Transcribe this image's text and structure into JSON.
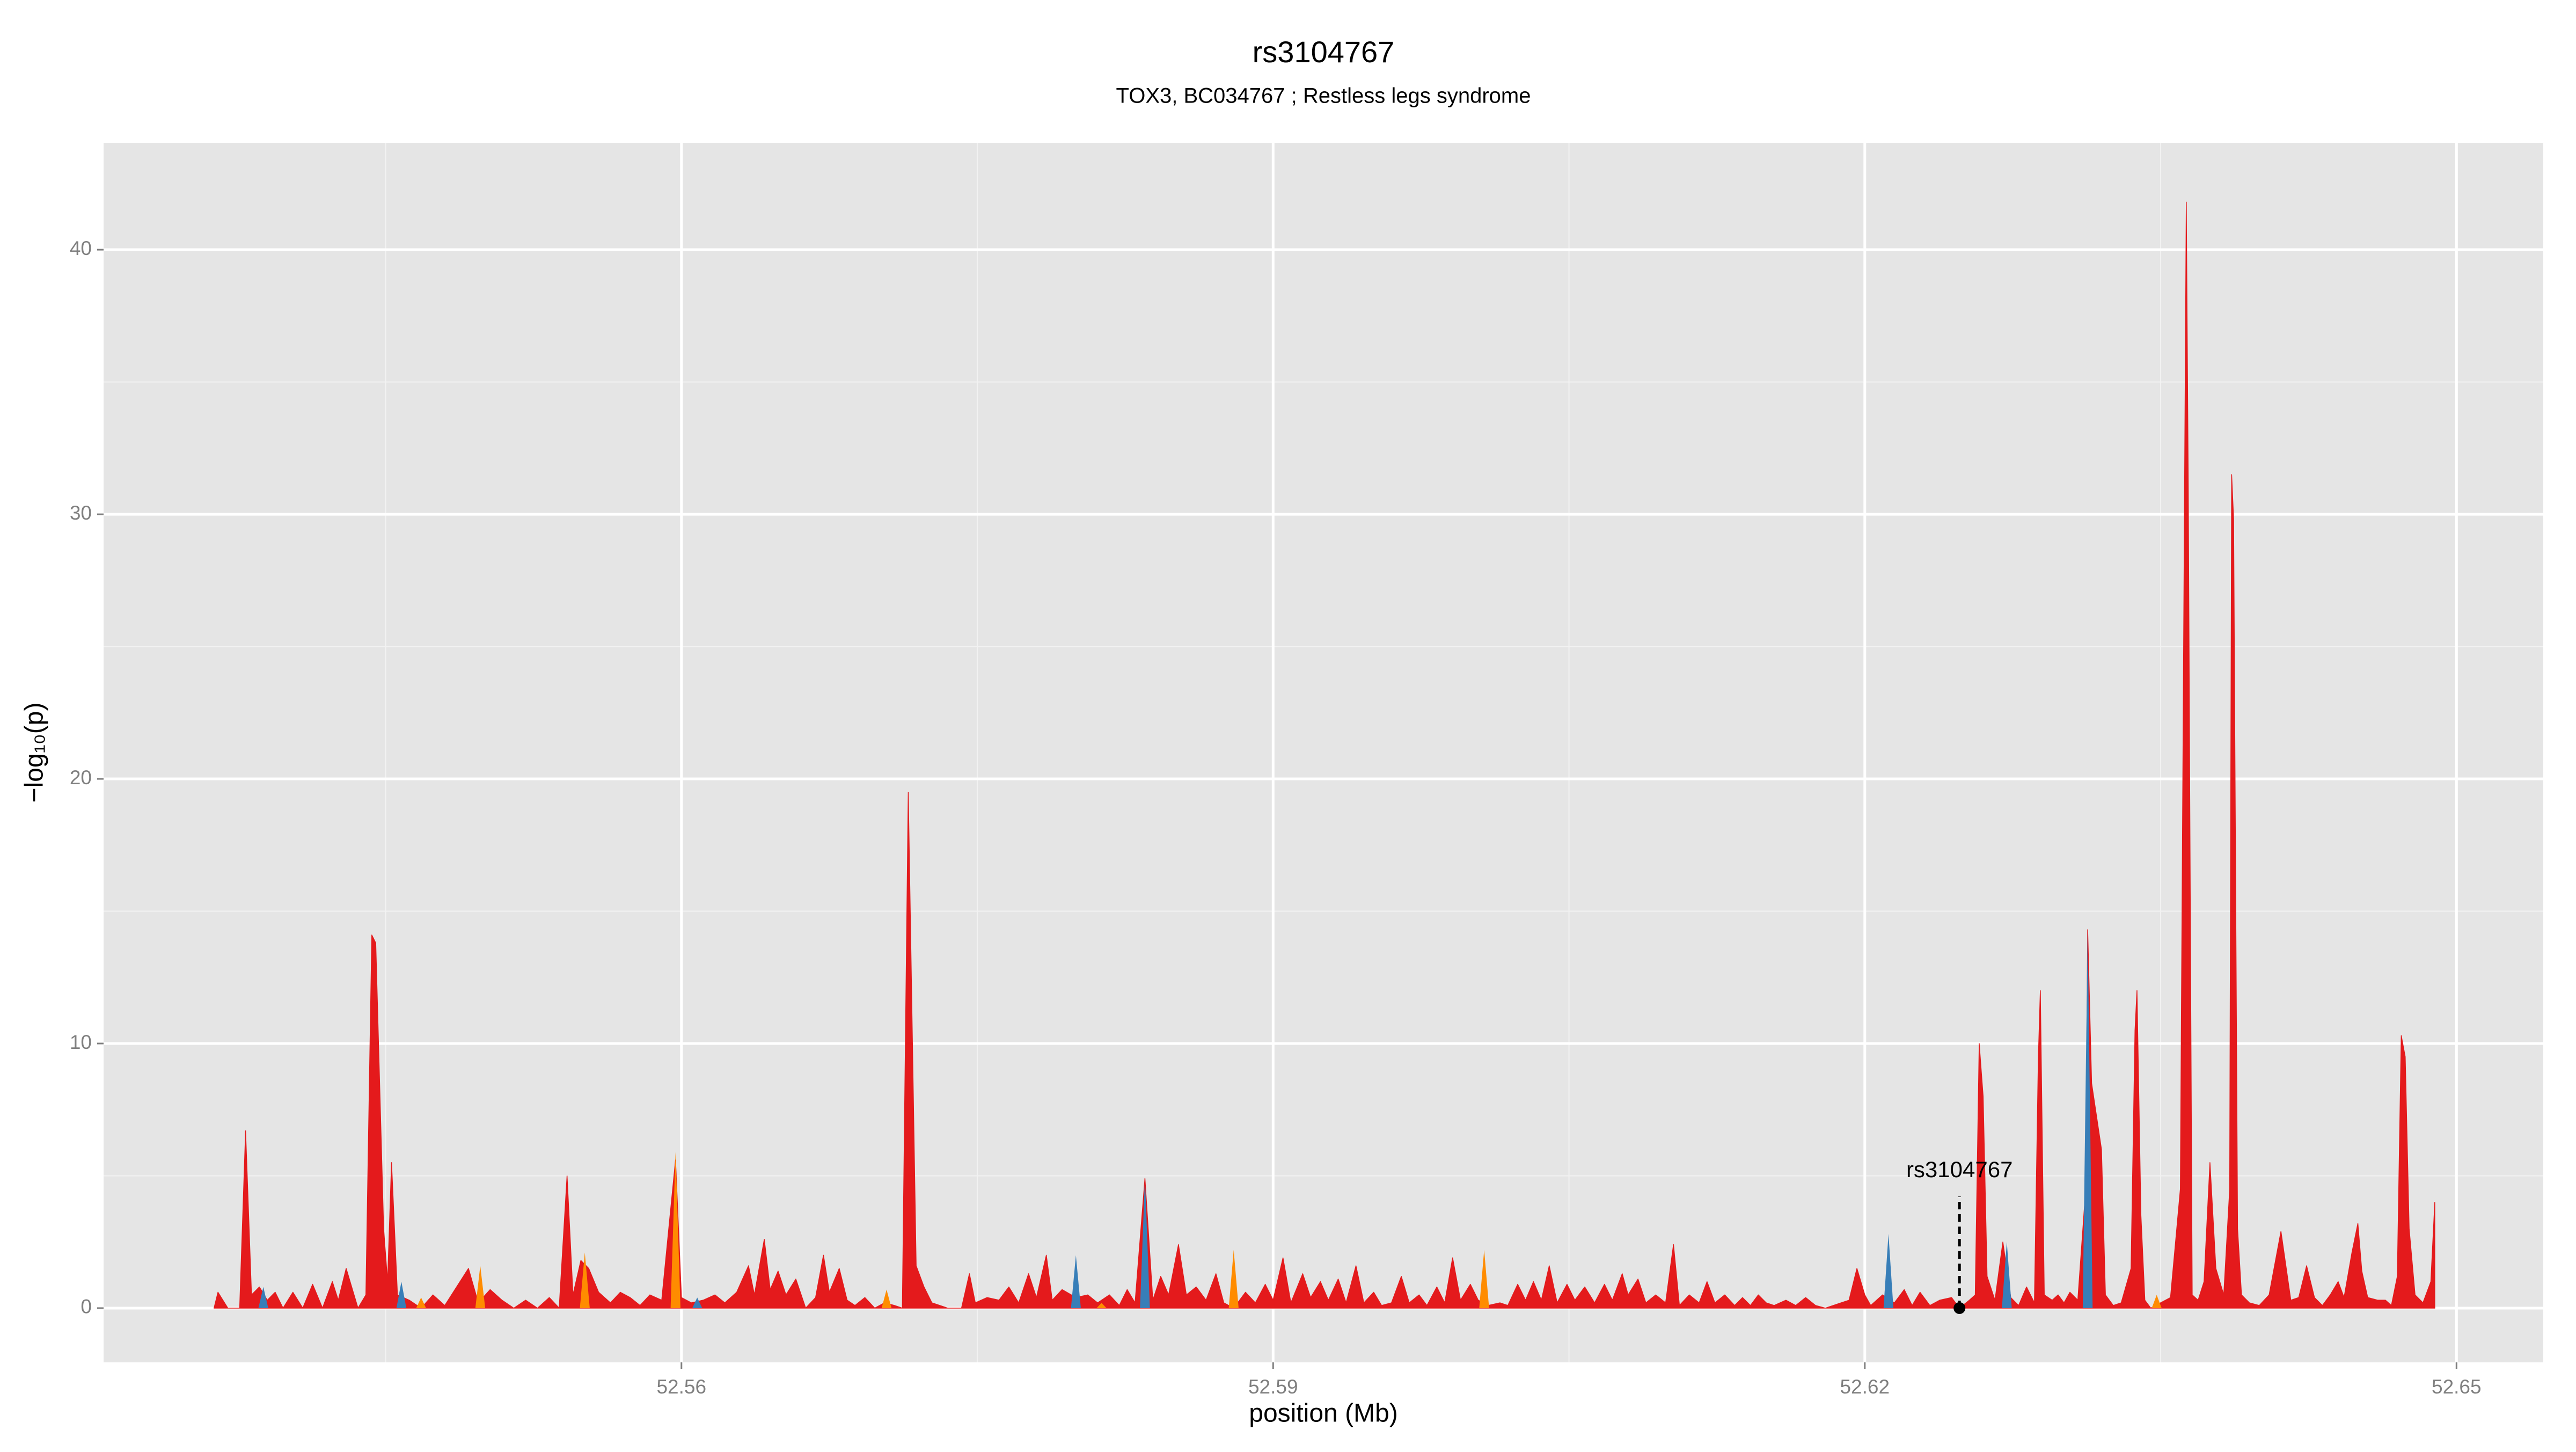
{
  "chart_data": {
    "type": "area",
    "title": "rs3104767",
    "subtitle": "TOX3, BC034767 ; Restless legs syndrome",
    "x_label": "position (Mb)",
    "y_label": "−log₁₀(p)",
    "xlim": [
      52.5307,
      52.6544
    ],
    "ylim": [
      -2.05,
      44.04
    ],
    "xticks": [
      52.56,
      52.59,
      52.62,
      52.65
    ],
    "yticks": [
      0,
      10,
      20,
      30,
      40
    ],
    "x_minor_ticks": [
      52.545,
      52.575,
      52.605,
      52.635
    ],
    "y_minor_ticks": [
      5,
      15,
      25,
      35
    ],
    "grid": true,
    "series": [
      {
        "color": "#e41a1c",
        "style": "area",
        "x": [
          52.5363,
          52.5365,
          52.537,
          52.5376,
          52.5379,
          52.5382,
          52.5386,
          52.539,
          52.5394,
          52.5398,
          52.5403,
          52.5408,
          52.5413,
          52.5418,
          52.5423,
          52.5426,
          52.543,
          52.5434,
          52.5436,
          52.544,
          52.5443,
          52.5445,
          52.5449,
          52.5451,
          52.5453,
          52.5456,
          52.5462,
          52.5468,
          52.5474,
          52.548,
          52.5486,
          52.5492,
          52.5497,
          52.5503,
          52.5509,
          52.5515,
          52.5521,
          52.5527,
          52.5533,
          52.5538,
          52.5542,
          52.5545,
          52.5549,
          52.5553,
          52.5558,
          52.5564,
          52.5569,
          52.5574,
          52.5579,
          52.5584,
          52.559,
          52.5597,
          52.56,
          52.5605,
          52.5611,
          52.5617,
          52.5622,
          52.5628,
          52.5634,
          52.5637,
          52.5642,
          52.5645,
          52.5649,
          52.5653,
          52.5658,
          52.5663,
          52.5668,
          52.5672,
          52.5675,
          52.568,
          52.5684,
          52.5688,
          52.5693,
          52.5698,
          52.5703,
          52.5708,
          52.5712,
          52.5715,
          52.5719,
          52.5723,
          52.5727,
          52.5731,
          52.5735,
          52.5742,
          52.5746,
          52.5749,
          52.5755,
          52.5761,
          52.5766,
          52.5771,
          52.5776,
          52.578,
          52.5785,
          52.5788,
          52.5793,
          52.58,
          52.5806,
          52.5811,
          52.5817,
          52.5822,
          52.5826,
          52.583,
          52.5835,
          52.5839,
          52.5843,
          52.5847,
          52.5852,
          52.5856,
          52.5861,
          52.5866,
          52.5871,
          52.5875,
          52.588,
          52.5886,
          52.5891,
          52.5896,
          52.59,
          52.5905,
          52.5909,
          52.5915,
          52.5919,
          52.5924,
          52.5928,
          52.5933,
          52.5937,
          52.5942,
          52.5946,
          52.5951,
          52.5955,
          52.596,
          52.5965,
          52.5969,
          52.5974,
          52.5978,
          52.5983,
          52.5987,
          52.5991,
          52.5995,
          52.6,
          52.6004,
          52.6009,
          52.6015,
          52.6019,
          52.6024,
          52.6028,
          52.6032,
          52.6036,
          52.604,
          52.6044,
          52.6049,
          52.6053,
          52.6058,
          52.6063,
          52.6068,
          52.6072,
          52.6077,
          52.608,
          52.6085,
          52.6089,
          52.6094,
          52.6099,
          52.6103,
          52.6106,
          52.6111,
          52.6116,
          52.612,
          52.6124,
          52.6129,
          52.6134,
          52.6138,
          52.6142,
          52.6146,
          52.615,
          52.6154,
          52.616,
          52.6165,
          52.617,
          52.6175,
          52.618,
          52.6188,
          52.6192,
          52.6196,
          52.62,
          52.6203,
          52.6209,
          52.6215,
          52.622,
          52.6224,
          52.6228,
          52.6233,
          52.6238,
          52.6244,
          52.6248,
          52.6253,
          52.6256,
          52.6258,
          52.626,
          52.6262,
          52.6266,
          52.627,
          52.6274,
          52.6278,
          52.6282,
          52.6286,
          52.6288,
          52.6289,
          52.6291,
          52.6295,
          52.6298,
          52.6301,
          52.6304,
          52.6308,
          52.6312,
          52.6313,
          52.6315,
          52.6318,
          52.632,
          52.6322,
          52.6326,
          52.633,
          52.6335,
          52.6337,
          52.6338,
          52.634,
          52.6342,
          52.6345,
          52.635,
          52.6355,
          52.636,
          52.6363,
          52.6364,
          52.6366,
          52.6369,
          52.6372,
          52.6375,
          52.6378,
          52.6382,
          52.6385,
          52.6386,
          52.6387,
          52.6389,
          52.6391,
          52.6395,
          52.64,
          52.6405,
          52.6411,
          52.6416,
          52.642,
          52.6424,
          52.6428,
          52.6432,
          52.6436,
          52.644,
          52.6443,
          52.6447,
          52.645,
          52.6452,
          52.6455,
          52.646,
          52.6464,
          52.6467,
          52.647,
          52.6472,
          52.6474,
          52.6476,
          52.6479,
          52.6483,
          52.6487,
          52.6489
        ],
        "values": [
          0,
          0.6,
          0,
          0,
          6.7,
          0.5,
          0.8,
          0.3,
          0.6,
          0,
          0.6,
          0,
          0.9,
          0,
          1.0,
          0.3,
          1.5,
          0.5,
          0,
          0.5,
          14.1,
          13.8,
          3,
          1,
          5.5,
          0.5,
          0.3,
          0,
          0.5,
          0.1,
          0.8,
          1.5,
          0.2,
          0.7,
          0.3,
          0,
          0.3,
          0,
          0.4,
          0,
          5.0,
          0.5,
          1.8,
          1.5,
          0.6,
          0.2,
          0.6,
          0.4,
          0.1,
          0.5,
          0.3,
          5.6,
          0.4,
          0.2,
          0.3,
          0.5,
          0.2,
          0.6,
          1.6,
          0.5,
          2.6,
          0.7,
          1.4,
          0.5,
          1.1,
          0,
          0.4,
          2.0,
          0.6,
          1.5,
          0.3,
          0.1,
          0.4,
          0,
          0.2,
          0.1,
          0,
          19.5,
          1.6,
          0.8,
          0.2,
          0.1,
          0,
          0,
          1.3,
          0.2,
          0.4,
          0.3,
          0.8,
          0.2,
          1.3,
          0.4,
          2.0,
          0.3,
          0.7,
          0.4,
          0.5,
          0.2,
          0.5,
          0.1,
          0.7,
          0.2,
          4.9,
          0.3,
          1.2,
          0.5,
          2.4,
          0.5,
          0.8,
          0.3,
          1.3,
          0.2,
          0,
          0.6,
          0.2,
          0.9,
          0.3,
          1.9,
          0.2,
          1.3,
          0.4,
          1.0,
          0.3,
          1.1,
          0.2,
          1.6,
          0.2,
          0.6,
          0.1,
          0.2,
          1.2,
          0.2,
          0.5,
          0.1,
          0.8,
          0.2,
          1.9,
          0.3,
          0.9,
          0.3,
          0.1,
          0.2,
          0.1,
          0.9,
          0.3,
          1.0,
          0.3,
          1.6,
          0.2,
          0.9,
          0.3,
          0.8,
          0.2,
          0.9,
          0.3,
          1.3,
          0.5,
          1.1,
          0.2,
          0.5,
          0.2,
          2.4,
          0.1,
          0.5,
          0.2,
          1.0,
          0.2,
          0.5,
          0.1,
          0.4,
          0.1,
          0.5,
          0.2,
          0.1,
          0.3,
          0.1,
          0.4,
          0.1,
          0,
          0.2,
          0.3,
          1.5,
          0.5,
          0.1,
          0.5,
          0.2,
          0.7,
          0.1,
          0.6,
          0.1,
          0.3,
          0.4,
          0,
          0.3,
          0.5,
          10,
          8,
          1.2,
          0.3,
          2.5,
          0.4,
          0.1,
          0.8,
          0.2,
          9.5,
          12,
          0.5,
          0.3,
          0.5,
          0.2,
          0.6,
          0.3,
          4.5,
          14.3,
          8.5,
          7,
          6,
          0.5,
          0.1,
          0.2,
          1.5,
          10.5,
          12,
          3.5,
          0.3,
          0,
          0.2,
          0.4,
          4.5,
          41.8,
          31,
          0.5,
          0.3,
          1,
          5.5,
          1.5,
          0.5,
          4.5,
          31.5,
          29.8,
          3,
          0.5,
          0.2,
          0.1,
          0.5,
          2.9,
          0.3,
          0.4,
          1.6,
          0.4,
          0.1,
          0.5,
          1.0,
          0.4,
          2.1,
          3.2,
          1.4,
          0.4,
          0.3,
          0.3,
          0.1,
          1.2,
          10.3,
          9.5,
          3,
          0.5,
          0.2,
          1.0,
          4.0
        ]
      },
      {
        "color": "#377eb8",
        "style": "spike",
        "x": [
          52.5388,
          52.5458,
          52.5608,
          52.58,
          52.5835,
          52.6212,
          52.6272,
          52.6313
        ],
        "values": [
          0.8,
          1.0,
          0.4,
          2.0,
          4.9,
          2.8,
          2.5,
          14.3
        ]
      },
      {
        "color": "#ff8c00",
        "style": "spike",
        "x": [
          52.5468,
          52.5498,
          52.5551,
          52.5597,
          52.5704,
          52.5813,
          52.588,
          52.6007,
          52.6348
        ],
        "values": [
          0.4,
          1.6,
          2.1,
          5.9,
          0.7,
          0.2,
          2.2,
          2.2,
          0.5
        ]
      }
    ],
    "annotations": [
      {
        "text": "rs3104767",
        "x": 52.6248,
        "y": 0
      }
    ]
  }
}
